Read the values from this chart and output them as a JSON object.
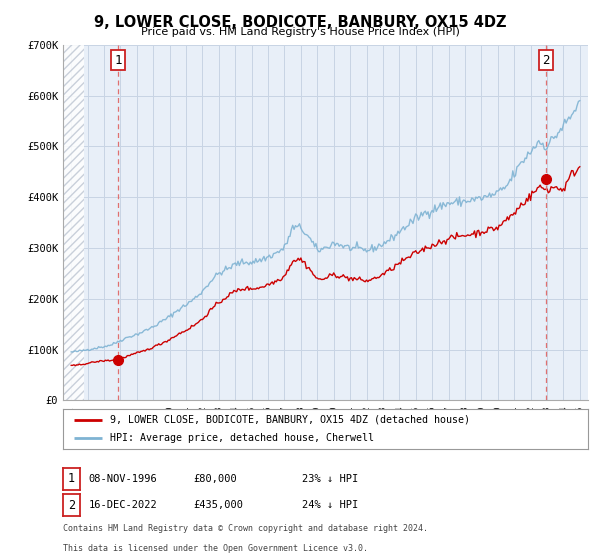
{
  "title": "9, LOWER CLOSE, BODICOTE, BANBURY, OX15 4DZ",
  "subtitle": "Price paid vs. HM Land Registry's House Price Index (HPI)",
  "xlim": [
    1993.5,
    2025.5
  ],
  "ylim": [
    0,
    700000
  ],
  "yticks": [
    0,
    100000,
    200000,
    300000,
    400000,
    500000,
    600000,
    700000
  ],
  "ytick_labels": [
    "£0",
    "£100K",
    "£200K",
    "£300K",
    "£400K",
    "£500K",
    "£600K",
    "£700K"
  ],
  "xticks": [
    1994,
    1995,
    1996,
    1997,
    1998,
    1999,
    2000,
    2001,
    2002,
    2003,
    2004,
    2005,
    2006,
    2007,
    2008,
    2009,
    2010,
    2011,
    2012,
    2013,
    2014,
    2015,
    2016,
    2017,
    2018,
    2019,
    2020,
    2021,
    2022,
    2023,
    2024,
    2025
  ],
  "hpi_color": "#7fb3d3",
  "price_color": "#cc0000",
  "marker_color": "#cc0000",
  "vline_color": "#e07070",
  "grid_color": "#c8d4e4",
  "bg_color": "#e8eff8",
  "hatch_color": "#c0c8d4",
  "annotation1": {
    "x": 1996.87,
    "label": "1",
    "date": "08-NOV-1996",
    "price": "£80,000",
    "pct": "23% ↓ HPI"
  },
  "annotation2": {
    "x": 2022.96,
    "label": "2",
    "date": "16-DEC-2022",
    "price": "£435,000",
    "pct": "24% ↓ HPI"
  },
  "sale1_x": 1996.87,
  "sale1_y": 80000,
  "sale2_x": 2022.96,
  "sale2_y": 435000,
  "legend_line1": "9, LOWER CLOSE, BODICOTE, BANBURY, OX15 4DZ (detached house)",
  "legend_line2": "HPI: Average price, detached house, Cherwell",
  "footnote1": "Contains HM Land Registry data © Crown copyright and database right 2024.",
  "footnote2": "This data is licensed under the Open Government Licence v3.0."
}
